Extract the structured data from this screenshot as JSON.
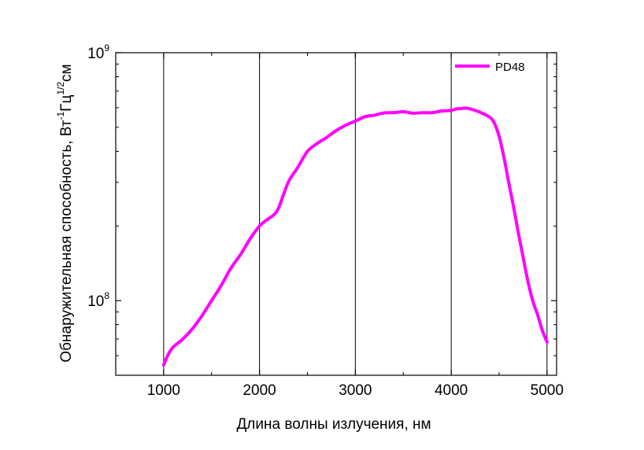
{
  "chart_data": {
    "type": "line",
    "xlabel": "Длина волны излучения, нм",
    "ylabel": {
      "main": "Обнаружительная способность, Вт",
      "sup1": "-1",
      "mid": "Гц",
      "sup2": "1/2",
      "end": "см"
    },
    "xlim": [
      500,
      5100
    ],
    "ylim": [
      50000000,
      1000000000
    ],
    "yscale": "log",
    "grid": "vertical",
    "legend_position": "top-right",
    "x_ticks": [
      1000,
      2000,
      3000,
      4000,
      5000
    ],
    "x_tick_labels": [
      "1000",
      "2000",
      "3000",
      "4000",
      "5000"
    ],
    "y_ticks": [
      {
        "value": 100000000,
        "base": "10",
        "exp": "8"
      },
      {
        "value": 1000000000,
        "base": "10",
        "exp": "9"
      }
    ],
    "series": [
      {
        "name": "PD48",
        "color": "#ff00ff",
        "x": [
          1000,
          1050,
          1100,
          1200,
          1300,
          1400,
          1500,
          1600,
          1700,
          1800,
          1900,
          2000,
          2100,
          2150,
          2200,
          2300,
          2400,
          2500,
          2600,
          2700,
          2800,
          2900,
          3000,
          3100,
          3200,
          3300,
          3400,
          3500,
          3600,
          3700,
          3800,
          3900,
          4000,
          4050,
          4100,
          4150,
          4200,
          4300,
          4400,
          4450,
          4500,
          4550,
          4600,
          4650,
          4700,
          4750,
          4800,
          4850,
          4900,
          4950,
          5000
        ],
        "y": [
          55000000,
          61000000,
          65000000,
          70000000,
          77000000,
          87000000,
          100000000,
          115000000,
          135000000,
          153000000,
          177000000,
          200000000,
          215000000,
          222000000,
          237000000,
          300000000,
          345000000,
          400000000,
          430000000,
          455000000,
          485000000,
          510000000,
          530000000,
          552000000,
          560000000,
          572000000,
          573000000,
          578000000,
          570000000,
          573000000,
          573000000,
          582000000,
          585000000,
          593000000,
          595000000,
          598000000,
          593000000,
          575000000,
          550000000,
          520000000,
          460000000,
          380000000,
          300000000,
          240000000,
          188000000,
          150000000,
          120000000,
          100000000,
          88000000,
          76000000,
          68000000
        ]
      }
    ]
  }
}
